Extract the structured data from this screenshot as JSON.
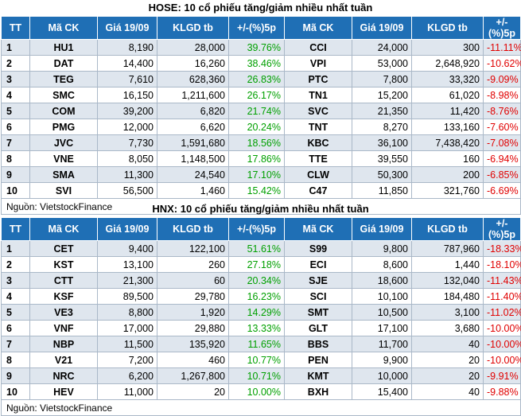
{
  "hose": {
    "title": "HOSE: 10 cổ phiếu tăng/giảm nhiều nhất tuần",
    "headers": [
      "TT",
      "Mã CK",
      "Giá 19/09",
      "KLGD tb",
      "+/-(%)5p",
      "Mã CK",
      "Giá 19/09",
      "KLGD tb",
      "+/-(%)5p"
    ],
    "rows": [
      {
        "tt": "1",
        "gain_code": "HU1",
        "gain_price": "8,190",
        "gain_vol": "28,000",
        "gain_pct": "39.76%",
        "loss_code": "CCI",
        "loss_price": "24,000",
        "loss_vol": "300",
        "loss_pct": "-11.11%"
      },
      {
        "tt": "2",
        "gain_code": "DAT",
        "gain_price": "14,400",
        "gain_vol": "16,260",
        "gain_pct": "38.46%",
        "loss_code": "VPI",
        "loss_price": "53,000",
        "loss_vol": "2,648,920",
        "loss_pct": "-10.62%"
      },
      {
        "tt": "3",
        "gain_code": "TEG",
        "gain_price": "7,610",
        "gain_vol": "628,360",
        "gain_pct": "26.83%",
        "loss_code": "PTC",
        "loss_price": "7,800",
        "loss_vol": "33,320",
        "loss_pct": "-9.09%"
      },
      {
        "tt": "4",
        "gain_code": "SMC",
        "gain_price": "16,150",
        "gain_vol": "1,211,600",
        "gain_pct": "26.17%",
        "loss_code": "TN1",
        "loss_price": "15,200",
        "loss_vol": "61,020",
        "loss_pct": "-8.98%"
      },
      {
        "tt": "5",
        "gain_code": "COM",
        "gain_price": "39,200",
        "gain_vol": "6,820",
        "gain_pct": "21.74%",
        "loss_code": "SVC",
        "loss_price": "21,350",
        "loss_vol": "11,420",
        "loss_pct": "-8.76%"
      },
      {
        "tt": "6",
        "gain_code": "PMG",
        "gain_price": "12,000",
        "gain_vol": "6,620",
        "gain_pct": "20.24%",
        "loss_code": "TNT",
        "loss_price": "8,270",
        "loss_vol": "133,160",
        "loss_pct": "-7.60%"
      },
      {
        "tt": "7",
        "gain_code": "JVC",
        "gain_price": "7,730",
        "gain_vol": "1,591,680",
        "gain_pct": "18.56%",
        "loss_code": "KBC",
        "loss_price": "36,100",
        "loss_vol": "7,438,420",
        "loss_pct": "-7.08%"
      },
      {
        "tt": "8",
        "gain_code": "VNE",
        "gain_price": "8,050",
        "gain_vol": "1,148,500",
        "gain_pct": "17.86%",
        "loss_code": "TTE",
        "loss_price": "39,550",
        "loss_vol": "160",
        "loss_pct": "-6.94%"
      },
      {
        "tt": "9",
        "gain_code": "SMA",
        "gain_price": "11,300",
        "gain_vol": "24,540",
        "gain_pct": "17.10%",
        "loss_code": "CLW",
        "loss_price": "50,300",
        "loss_vol": "200",
        "loss_pct": "-6.85%"
      },
      {
        "tt": "10",
        "gain_code": "SVI",
        "gain_price": "56,500",
        "gain_vol": "1,460",
        "gain_pct": "15.42%",
        "loss_code": "C47",
        "loss_price": "11,850",
        "loss_vol": "321,760",
        "loss_pct": "-6.69%"
      }
    ],
    "source": "Nguồn: VietstockFinance"
  },
  "hnx": {
    "title": "HNX: 10 cổ phiếu tăng/giảm nhiều nhất tuần",
    "headers": [
      "TT",
      "Mã CK",
      "Giá 19/09",
      "KLGD tb",
      "+/-(%)5p",
      "Mã CK",
      "Giá 19/09",
      "KLGD tb",
      "+/-(%)5p"
    ],
    "rows": [
      {
        "tt": "1",
        "gain_code": "CET",
        "gain_price": "9,400",
        "gain_vol": "122,100",
        "gain_pct": "51.61%",
        "loss_code": "S99",
        "loss_price": "9,800",
        "loss_vol": "787,960",
        "loss_pct": "-18.33%"
      },
      {
        "tt": "2",
        "gain_code": "KST",
        "gain_price": "13,100",
        "gain_vol": "260",
        "gain_pct": "27.18%",
        "loss_code": "ECI",
        "loss_price": "8,600",
        "loss_vol": "1,440",
        "loss_pct": "-18.10%"
      },
      {
        "tt": "3",
        "gain_code": "CTT",
        "gain_price": "21,300",
        "gain_vol": "60",
        "gain_pct": "20.34%",
        "loss_code": "SJE",
        "loss_price": "18,600",
        "loss_vol": "132,040",
        "loss_pct": "-11.43%"
      },
      {
        "tt": "4",
        "gain_code": "KSF",
        "gain_price": "89,500",
        "gain_vol": "29,780",
        "gain_pct": "16.23%",
        "loss_code": "SCI",
        "loss_price": "10,100",
        "loss_vol": "184,480",
        "loss_pct": "-11.40%"
      },
      {
        "tt": "5",
        "gain_code": "VE3",
        "gain_price": "8,800",
        "gain_vol": "1,920",
        "gain_pct": "14.29%",
        "loss_code": "SMT",
        "loss_price": "10,500",
        "loss_vol": "3,100",
        "loss_pct": "-11.02%"
      },
      {
        "tt": "6",
        "gain_code": "VNF",
        "gain_price": "17,000",
        "gain_vol": "29,880",
        "gain_pct": "13.33%",
        "loss_code": "GLT",
        "loss_price": "17,100",
        "loss_vol": "3,680",
        "loss_pct": "-10.00%"
      },
      {
        "tt": "7",
        "gain_code": "NBP",
        "gain_price": "11,500",
        "gain_vol": "135,920",
        "gain_pct": "11.65%",
        "loss_code": "BBS",
        "loss_price": "11,700",
        "loss_vol": "40",
        "loss_pct": "-10.00%"
      },
      {
        "tt": "8",
        "gain_code": "V21",
        "gain_price": "7,200",
        "gain_vol": "460",
        "gain_pct": "10.77%",
        "loss_code": "PEN",
        "loss_price": "9,900",
        "loss_vol": "20",
        "loss_pct": "-10.00%"
      },
      {
        "tt": "9",
        "gain_code": "NRC",
        "gain_price": "6,200",
        "gain_vol": "1,267,800",
        "gain_pct": "10.71%",
        "loss_code": "KMT",
        "loss_price": "10,000",
        "loss_vol": "20",
        "loss_pct": "-9.91%"
      },
      {
        "tt": "10",
        "gain_code": "HEV",
        "gain_price": "11,000",
        "gain_vol": "20",
        "gain_pct": "10.00%",
        "loss_code": "BXH",
        "loss_price": "15,400",
        "loss_vol": "40",
        "loss_pct": "-9.88%"
      }
    ],
    "source": "Nguồn: VietstockFinance"
  }
}
